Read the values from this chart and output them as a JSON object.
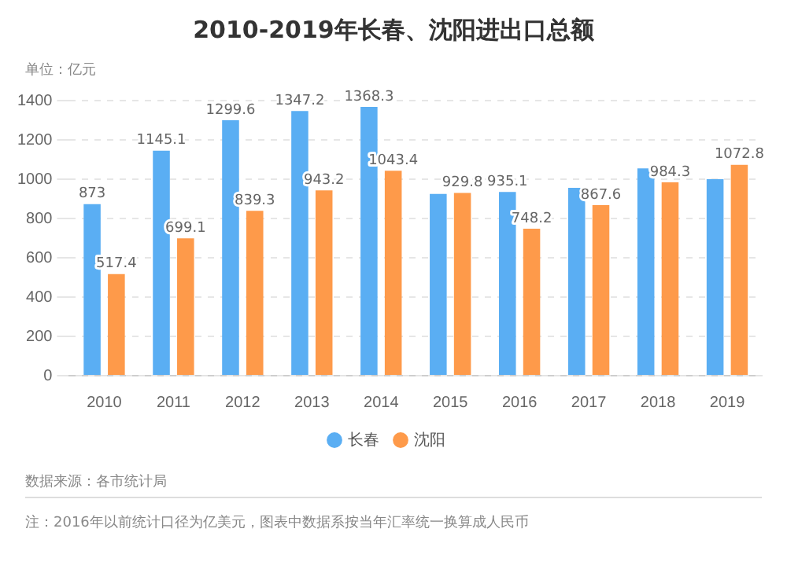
{
  "chart_data": {
    "type": "bar",
    "title": "2010-2019年长春、沈阳进出口总额",
    "ylabel": "单位：亿元",
    "categories": [
      "2010",
      "2011",
      "2012",
      "2013",
      "2014",
      "2015",
      "2016",
      "2017",
      "2018",
      "2019"
    ],
    "series": [
      {
        "name": "长春",
        "color": "#5aaef3",
        "values": [
          873,
          1145.1,
          1299.6,
          1347.2,
          1368.3,
          925,
          935.1,
          956,
          1055,
          1000
        ],
        "value_labels": [
          "873",
          "1145.1",
          "1299.6",
          "1347.2",
          "1368.3",
          null,
          "935.1",
          null,
          null,
          null
        ]
      },
      {
        "name": "沈阳",
        "color": "#fe9a4a",
        "values": [
          517.4,
          699.1,
          839.3,
          943.2,
          1043.4,
          929.8,
          748.2,
          867.6,
          984.3,
          1072.8
        ],
        "value_labels": [
          "517.4",
          "699.1",
          "839.3",
          "943.2",
          "1043.4",
          "929.8",
          "748.2",
          "867.6",
          "984.3",
          "1072.8"
        ]
      }
    ],
    "ylim": [
      0,
      1400
    ],
    "yticks": [
      0,
      200,
      400,
      600,
      800,
      1000,
      1200,
      1400
    ],
    "grid": "y",
    "legend": "bottom",
    "annotations": [
      "数据来源：各市统计局",
      "注：2016年以前统计口径为亿美元，图表中数据系按当年汇率统一换算成人民币"
    ]
  }
}
